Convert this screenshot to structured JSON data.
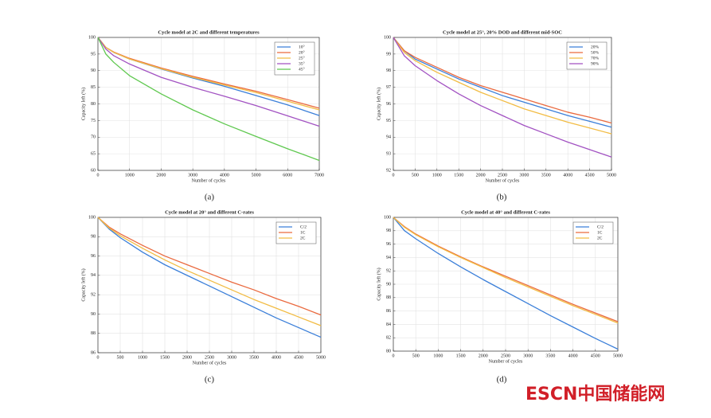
{
  "chart_data": [
    {
      "type": "line",
      "title": "Cycle model at 2C and different temperatures",
      "panel": "(a)",
      "x_label": "Number of cycles",
      "y_label": "Capacity left (%)",
      "x": [
        0,
        250,
        500,
        1000,
        2000,
        3000,
        4000,
        5000,
        6000,
        7000
      ],
      "xlim": [
        0,
        7000
      ],
      "xticks": [
        0,
        1000,
        2000,
        3000,
        4000,
        5000,
        6000,
        7000
      ],
      "ylim": [
        60,
        100
      ],
      "yticks": [
        60,
        65,
        70,
        75,
        80,
        85,
        90,
        95,
        100
      ],
      "grid": true,
      "legend": "top-right",
      "series": [
        {
          "name": "10°",
          "color": "#3b7fd9",
          "values": [
            100,
            97,
            95.5,
            93.5,
            90.5,
            87.8,
            85.3,
            82.5,
            79.7,
            76.5
          ]
        },
        {
          "name": "20°",
          "color": "#ea6a3f",
          "values": [
            100,
            97,
            95.6,
            93.7,
            90.8,
            88.3,
            86,
            83.8,
            81.3,
            78.7
          ]
        },
        {
          "name": "25°",
          "color": "#f2bc44",
          "values": [
            100,
            97,
            95.5,
            93.5,
            90.6,
            88,
            85.7,
            83.4,
            80.8,
            78.2
          ]
        },
        {
          "name": "35°",
          "color": "#a252c2",
          "values": [
            100,
            96.5,
            94.5,
            92,
            88,
            85,
            82.3,
            79.5,
            76.4,
            73.3
          ]
        },
        {
          "name": "45°",
          "color": "#5fc84f",
          "values": [
            100,
            95,
            92.5,
            88.5,
            83,
            78.2,
            74,
            70.2,
            66.5,
            63
          ]
        }
      ]
    },
    {
      "type": "line",
      "title": "Cycle model at 25°, 20% DOD and different mid-SOC",
      "panel": "(b)",
      "x_label": "Number of cycles",
      "y_label": "Capacity left (%)",
      "x": [
        0,
        250,
        500,
        1000,
        1500,
        2000,
        2500,
        3000,
        3500,
        4000,
        4500,
        5000
      ],
      "xlim": [
        0,
        5000
      ],
      "xticks": [
        0,
        500,
        1000,
        1500,
        2000,
        2500,
        3000,
        3500,
        4000,
        4500,
        5000
      ],
      "ylim": [
        92,
        100
      ],
      "yticks": [
        92,
        93,
        94,
        95,
        96,
        97,
        98,
        99,
        100
      ],
      "grid": true,
      "legend": "top-right",
      "series": [
        {
          "name": "20%",
          "color": "#3b7fd9",
          "values": [
            100,
            99.2,
            98.7,
            98.1,
            97.5,
            97,
            96.5,
            96.1,
            95.7,
            95.3,
            94.95,
            94.6
          ]
        },
        {
          "name": "50%",
          "color": "#ea6a3f",
          "values": [
            100,
            99.2,
            98.8,
            98.2,
            97.6,
            97.1,
            96.7,
            96.3,
            95.9,
            95.5,
            95.2,
            94.85
          ]
        },
        {
          "name": "70%",
          "color": "#f2bc44",
          "values": [
            100,
            99.1,
            98.6,
            97.9,
            97.3,
            96.7,
            96.2,
            95.7,
            95.3,
            94.9,
            94.55,
            94.2
          ]
        },
        {
          "name": "90%",
          "color": "#a252c2",
          "values": [
            100,
            98.9,
            98.3,
            97.4,
            96.6,
            95.9,
            95.3,
            94.7,
            94.2,
            93.7,
            93.25,
            92.8
          ]
        }
      ]
    },
    {
      "type": "line",
      "title": "Cycle model at 20° and different C-rates",
      "panel": "(c)",
      "x_label": "Number of cycles",
      "y_label": "Capacity left (%)",
      "x": [
        0,
        250,
        500,
        1000,
        1500,
        2000,
        2500,
        3000,
        3500,
        4000,
        4500,
        5000
      ],
      "xlim": [
        0,
        5000
      ],
      "xticks": [
        0,
        500,
        1000,
        1500,
        2000,
        2500,
        3000,
        3500,
        4000,
        4500,
        5000
      ],
      "ylim": [
        86,
        100
      ],
      "yticks": [
        86,
        88,
        90,
        92,
        94,
        96,
        98,
        100
      ],
      "grid": true,
      "legend": "top-right",
      "series": [
        {
          "name": "C/2",
          "color": "#3b7fd9",
          "values": [
            100,
            98.8,
            97.9,
            96.4,
            95.1,
            94,
            92.9,
            91.8,
            90.7,
            89.6,
            88.6,
            87.6
          ]
        },
        {
          "name": "1C",
          "color": "#ea6a3f",
          "values": [
            100,
            99,
            98.3,
            97.1,
            96,
            95.1,
            94.2,
            93.3,
            92.5,
            91.6,
            90.8,
            89.9
          ]
        },
        {
          "name": "2C",
          "color": "#f2bc44",
          "values": [
            100,
            98.9,
            98.1,
            96.8,
            95.6,
            94.5,
            93.5,
            92.5,
            91.5,
            90.6,
            89.7,
            88.8
          ]
        }
      ]
    },
    {
      "type": "line",
      "title": "Cycle model at 40° and different C-rates",
      "panel": "(d)",
      "x_label": "Number of cycles",
      "y_label": "Capacity left (%)",
      "x": [
        0,
        250,
        500,
        1000,
        1500,
        2000,
        2500,
        3000,
        3500,
        4000,
        4500,
        5000
      ],
      "xlim": [
        0,
        5000
      ],
      "xticks": [
        0,
        500,
        1000,
        1500,
        2000,
        2500,
        3000,
        3500,
        4000,
        4500,
        5000
      ],
      "ylim": [
        80,
        100
      ],
      "yticks": [
        80,
        82,
        84,
        86,
        88,
        90,
        92,
        94,
        96,
        98,
        100
      ],
      "grid": true,
      "legend": "top-right",
      "series": [
        {
          "name": "C/2",
          "color": "#3b7fd9",
          "values": [
            100,
            98,
            96.8,
            94.6,
            92.6,
            90.7,
            88.9,
            87.1,
            85.3,
            83.6,
            81.9,
            80.3
          ]
        },
        {
          "name": "1C",
          "color": "#ea6a3f",
          "values": [
            100,
            98.6,
            97.5,
            95.7,
            94.1,
            92.6,
            91.2,
            89.8,
            88.4,
            87,
            85.7,
            84.4
          ]
        },
        {
          "name": "2C",
          "color": "#f2bc44",
          "values": [
            100,
            98.5,
            97.4,
            95.6,
            94,
            92.5,
            91,
            89.6,
            88.2,
            86.8,
            85.5,
            84.2
          ]
        }
      ]
    }
  ],
  "watermark": "ESCN中国储能网"
}
